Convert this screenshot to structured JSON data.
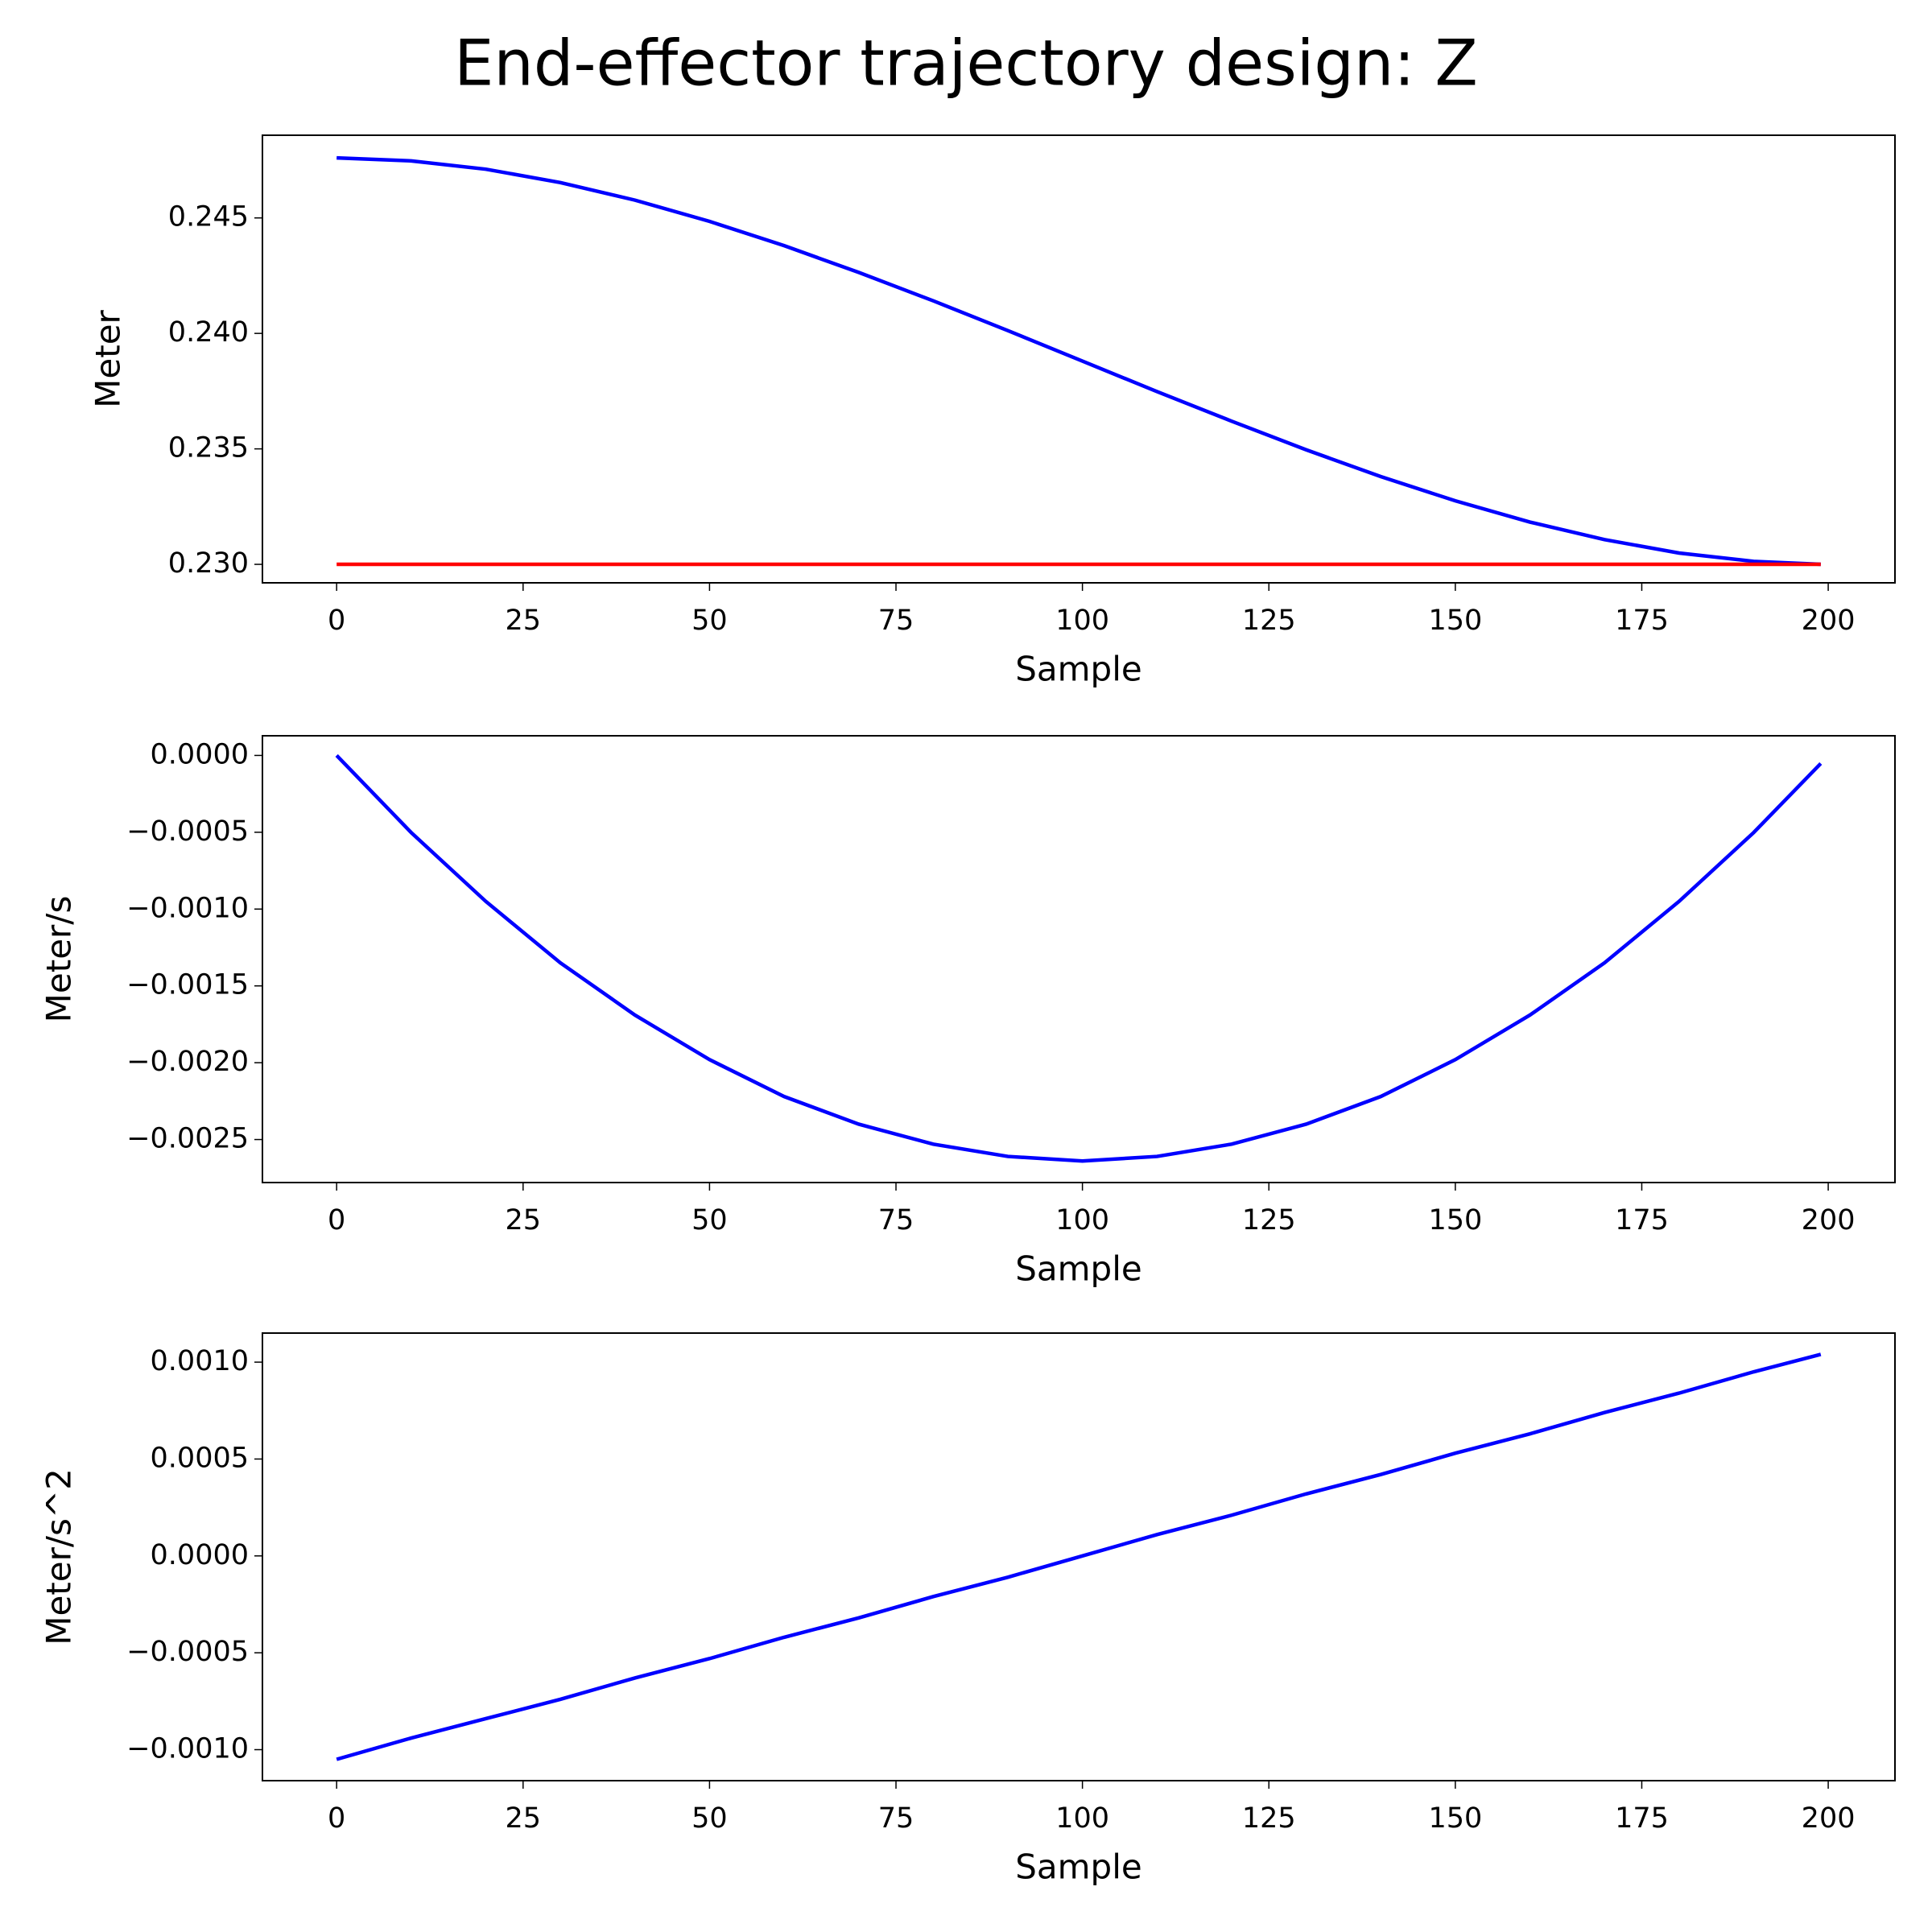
{
  "title": "End-effector trajectory design: Z",
  "chart_data": [
    {
      "type": "line",
      "xlabel": "Sample",
      "ylabel": "Meter",
      "x": [
        0,
        10,
        20,
        30,
        40,
        50,
        60,
        70,
        80,
        90,
        100,
        110,
        120,
        130,
        140,
        150,
        160,
        170,
        180,
        190,
        199
      ],
      "series": [
        {
          "color": "#0000ff",
          "values": [
            0.2476,
            0.24747,
            0.24711,
            0.24653,
            0.24577,
            0.24485,
            0.2438,
            0.24264,
            0.24141,
            0.24012,
            0.2388,
            0.23748,
            0.2362,
            0.23496,
            0.2338,
            0.23275,
            0.23183,
            0.23107,
            0.23049,
            0.23013,
            0.23
          ]
        },
        {
          "color": "#ff0000",
          "values": [
            0.23,
            0.23,
            0.23,
            0.23,
            0.23,
            0.23,
            0.23,
            0.23,
            0.23,
            0.23,
            0.23,
            0.23,
            0.23,
            0.23,
            0.23,
            0.23,
            0.23,
            0.23,
            0.23,
            0.23,
            0.23
          ]
        }
      ],
      "xlim": [
        -9.95,
        208.95
      ],
      "xticks": [
        0,
        25,
        50,
        75,
        100,
        125,
        150,
        175,
        200
      ],
      "ylim": [
        0.2292,
        0.24858
      ],
      "yticks": [
        {
          "value": 0.23,
          "label": "0.230"
        },
        {
          "value": 0.235,
          "label": "0.235"
        },
        {
          "value": 0.24,
          "label": "0.240"
        },
        {
          "value": 0.245,
          "label": "0.245"
        }
      ]
    },
    {
      "type": "line",
      "xlabel": "Sample",
      "ylabel": "Meter/s",
      "x": [
        0,
        10,
        20,
        30,
        40,
        50,
        60,
        70,
        80,
        90,
        100,
        110,
        120,
        130,
        140,
        150,
        160,
        170,
        180,
        190,
        199
      ],
      "series": [
        {
          "color": "#0000ff",
          "values": [
            0,
            -0.000502,
            -0.00095,
            -0.00135,
            -0.00169,
            -0.00198,
            -0.00222,
            -0.0024,
            -0.00253,
            -0.00261,
            -0.00264,
            -0.00261,
            -0.00253,
            -0.0024,
            -0.00222,
            -0.00198,
            -0.00169,
            -0.00135,
            -0.00095,
            -0.000502,
            -5.25e-05
          ]
        }
      ],
      "xlim": [
        -9.95,
        208.95
      ],
      "xticks": [
        0,
        25,
        50,
        75,
        100,
        125,
        150,
        175,
        200
      ],
      "ylim": [
        -0.00278,
        0.000128
      ],
      "yticks": [
        {
          "value": -0.0025,
          "label": "−0.0025"
        },
        {
          "value": -0.002,
          "label": "−0.0020"
        },
        {
          "value": -0.0015,
          "label": "−0.0015"
        },
        {
          "value": -0.001,
          "label": "−0.0010"
        },
        {
          "value": -0.0005,
          "label": "−0.0005"
        },
        {
          "value": 0,
          "label": "0.0000"
        }
      ]
    },
    {
      "type": "line",
      "xlabel": "Sample",
      "ylabel": "Meter/s^2",
      "x": [
        0,
        10,
        20,
        30,
        40,
        50,
        60,
        70,
        80,
        90,
        100,
        110,
        120,
        130,
        140,
        150,
        160,
        170,
        180,
        190,
        199
      ],
      "series": [
        {
          "color": "#0000ff",
          "values": [
            -0.00105,
            -0.00094,
            -0.00084,
            -0.00074,
            -0.00063,
            -0.00053,
            -0.00042,
            -0.00032,
            -0.00021,
            -0.00011,
            0,
            0.00011,
            0.00021,
            0.00032,
            0.00042,
            0.00053,
            0.00063,
            0.00074,
            0.00084,
            0.00095,
            0.00104
          ]
        }
      ],
      "xlim": [
        -9.95,
        208.95
      ],
      "xticks": [
        0,
        25,
        50,
        75,
        100,
        125,
        150,
        175,
        200
      ],
      "ylim": [
        -0.00116,
        0.00115
      ],
      "yticks": [
        {
          "value": -0.001,
          "label": "−0.0010"
        },
        {
          "value": -0.0005,
          "label": "−0.0005"
        },
        {
          "value": 0,
          "label": "0.0000"
        },
        {
          "value": 0.0005,
          "label": "0.0005"
        },
        {
          "value": 0.001,
          "label": "0.0010"
        }
      ]
    }
  ]
}
